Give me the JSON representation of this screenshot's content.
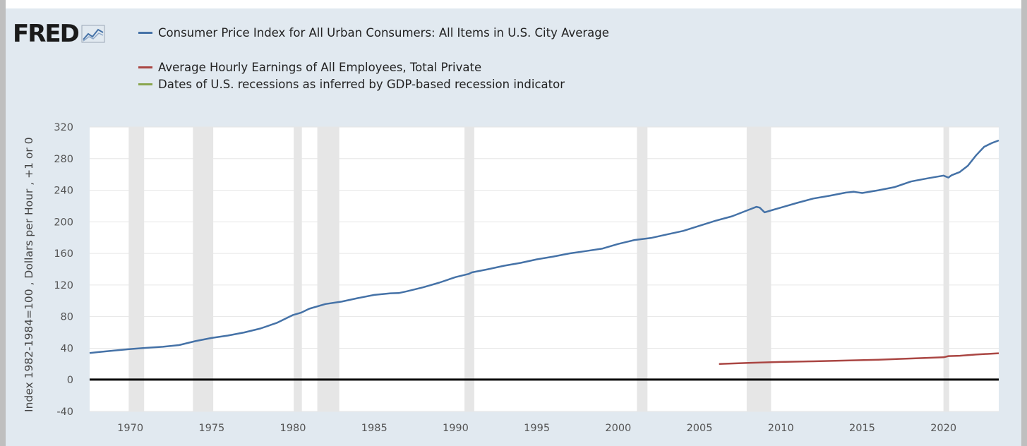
{
  "logo": {
    "text": "FRED",
    "mark": "trend-lines-icon"
  },
  "legend": [
    {
      "label": "Consumer Price Index for All Urban Consumers: All Items in U.S. City Average",
      "color": "#4572a7"
    },
    {
      "label": "Average Hourly Earnings of All Employees, Total Private",
      "color": "#aa4643"
    },
    {
      "label": "Dates of U.S. recessions as inferred by GDP-based recession indicator",
      "color": "#89a54e"
    }
  ],
  "chart_data": {
    "type": "line",
    "ylabel": "Index 1982-1984=100 , Dollars per Hour , +1 or 0",
    "xlim": [
      1967.5,
      2023.4
    ],
    "ylim": [
      -40,
      320
    ],
    "x_ticks": [
      "1970",
      "1975",
      "1980",
      "1985",
      "1990",
      "1995",
      "2000",
      "2005",
      "2010",
      "2015",
      "2020"
    ],
    "y_ticks": [
      "-40",
      "0",
      "40",
      "80",
      "120",
      "160",
      "200",
      "240",
      "280",
      "320"
    ],
    "grid": "horizontal",
    "recessions": [
      [
        1969.9,
        1970.85
      ],
      [
        1973.85,
        1975.1
      ],
      [
        1980.05,
        1980.55
      ],
      [
        1981.5,
        1982.85
      ],
      [
        1990.55,
        1991.15
      ],
      [
        2001.15,
        2001.8
      ],
      [
        2007.9,
        2009.4
      ],
      [
        2020.0,
        2020.35
      ]
    ],
    "series": [
      {
        "name": "Consumer Price Index for All Urban Consumers: All Items in U.S. City Average",
        "color": "#4572a7",
        "x": [
          1967.5,
          1968,
          1969,
          1970,
          1971,
          1972,
          1973,
          1974,
          1975,
          1976,
          1977,
          1978,
          1979,
          1980,
          1980.5,
          1981,
          1982,
          1983,
          1984,
          1985,
          1986,
          1986.5,
          1987,
          1988,
          1989,
          1990,
          1990.8,
          1991,
          1992,
          1993,
          1994,
          1995,
          1996,
          1997,
          1998,
          1999,
          2000,
          2001,
          2002,
          2003,
          2004,
          2005,
          2006,
          2007,
          2008,
          2008.5,
          2008.7,
          2009,
          2009.5,
          2010,
          2011,
          2012,
          2013,
          2014,
          2014.5,
          2015,
          2016,
          2017,
          2018,
          2019,
          2020,
          2020.3,
          2020.5,
          2021,
          2021.5,
          2022,
          2022.5,
          2023,
          2023.4
        ],
        "y": [
          34,
          35,
          37,
          39,
          40.5,
          41.8,
          44,
          49,
          53,
          56,
          60,
          65,
          72,
          82,
          85,
          90,
          96,
          99,
          103.5,
          107.5,
          109.5,
          109.8,
          112,
          117,
          123,
          130,
          134,
          136,
          140,
          144.5,
          148,
          152.5,
          156,
          160,
          163,
          166,
          172,
          177,
          179.5,
          184,
          188.5,
          195,
          201.5,
          207,
          215,
          219,
          218,
          212,
          215,
          218,
          224,
          229.5,
          233,
          237,
          238,
          236.5,
          240,
          244,
          251,
          255,
          258.5,
          256,
          259,
          263,
          271,
          284,
          295,
          300,
          303
        ]
      },
      {
        "name": "Average Hourly Earnings of All Employees, Total Private",
        "color": "#aa4643",
        "x": [
          2006.2,
          2008,
          2010,
          2012,
          2014,
          2016,
          2018,
          2020,
          2020.3,
          2021,
          2022,
          2023,
          2023.4
        ],
        "y": [
          20.1,
          21.4,
          22.6,
          23.4,
          24.4,
          25.5,
          27,
          28.5,
          30,
          30.5,
          32,
          33.2,
          33.6
        ]
      },
      {
        "name": "Dates of U.S. recessions as inferred by GDP-based recession indicator",
        "color": "#000000",
        "x": [
          1967.5,
          2023.4
        ],
        "y": [
          0.3,
          0.3
        ]
      }
    ]
  }
}
